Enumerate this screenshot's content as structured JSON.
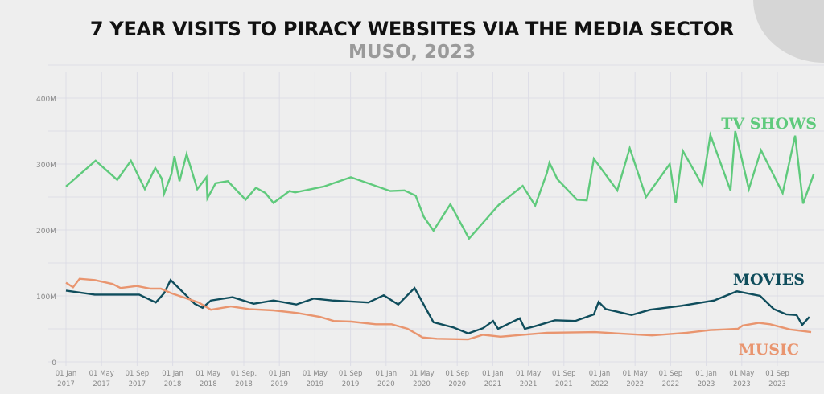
{
  "chart_data": {
    "type": "line",
    "title": "7 YEAR VISITS TO PIRACY WEBSITES VIA THE MEDIA SECTOR",
    "subtitle": "MUSO, 2023",
    "xlabel": "",
    "ylabel": "",
    "ylim": [
      0,
      400
    ],
    "yticks": [
      {
        "v": 0,
        "label": "0"
      },
      {
        "v": 100,
        "label": "100M"
      },
      {
        "v": 200,
        "label": "200M"
      },
      {
        "v": 300,
        "label": "300M"
      },
      {
        "v": 400,
        "label": "400M"
      }
    ],
    "xticks": [
      {
        "date": "2017-01-01",
        "l1": "01 Jan",
        "l2": "2017"
      },
      {
        "date": "2017-05-01",
        "l1": "01 May",
        "l2": "2017"
      },
      {
        "date": "2017-09-01",
        "l1": "01 Sep",
        "l2": "2017"
      },
      {
        "date": "2018-01-01",
        "l1": "01 Jan",
        "l2": "2018"
      },
      {
        "date": "2018-05-01",
        "l1": "01 May",
        "l2": "2018"
      },
      {
        "date": "2018-09-01",
        "l1": "01 Sep,",
        "l2": "2018"
      },
      {
        "date": "2019-01-01",
        "l1": "01 Jan",
        "l2": "2019"
      },
      {
        "date": "2019-05-01",
        "l1": "01 May",
        "l2": "2019"
      },
      {
        "date": "2019-09-01",
        "l1": "01 Sep",
        "l2": "2019"
      },
      {
        "date": "2020-01-01",
        "l1": "01 Jan",
        "l2": "2020"
      },
      {
        "date": "2020-05-01",
        "l1": "01 May",
        "l2": "2020"
      },
      {
        "date": "2020-09-01",
        "l1": "01 Sep",
        "l2": "2020"
      },
      {
        "date": "2021-01-01",
        "l1": "01 Jan",
        "l2": "2021"
      },
      {
        "date": "2021-05-01",
        "l1": "01 May",
        "l2": "2021"
      },
      {
        "date": "2021-09-01",
        "l1": "01 Sep",
        "l2": "2021"
      },
      {
        "date": "2022-01-01",
        "l1": "01 Jan",
        "l2": "2022"
      },
      {
        "date": "2022-05-01",
        "l1": "01 May",
        "l2": "2022"
      },
      {
        "date": "2022-09-01",
        "l1": "01 Sep",
        "l2": "2022"
      },
      {
        "date": "2023-01-01",
        "l1": "01 Jan",
        "l2": "2023"
      },
      {
        "date": "2023-05-01",
        "l1": "01 May",
        "l2": "2023"
      },
      {
        "date": "2023-09-01",
        "l1": "01 Sep",
        "l2": "2023"
      }
    ],
    "grid": true,
    "legend": "inline labels at right",
    "series": [
      {
        "name": "TV SHOWS",
        "color": "#5fca7c",
        "points": [
          [
            "2017-01-01",
            266
          ],
          [
            "2017-04-11",
            305
          ],
          [
            "2017-06-24",
            276
          ],
          [
            "2017-08-10",
            305
          ],
          [
            "2017-09-27",
            262
          ],
          [
            "2017-11-02",
            294
          ],
          [
            "2017-11-24",
            278
          ],
          [
            "2017-12-02",
            255
          ],
          [
            "2017-12-27",
            285
          ],
          [
            "2018-01-07",
            312
          ],
          [
            "2018-01-24",
            274
          ],
          [
            "2018-02-18",
            315
          ],
          [
            "2018-03-24",
            262
          ],
          [
            "2018-04-25",
            280
          ],
          [
            "2018-04-28",
            248
          ],
          [
            "2018-05-26",
            271
          ],
          [
            "2018-07-07",
            274
          ],
          [
            "2018-09-07",
            246
          ],
          [
            "2018-10-12",
            264
          ],
          [
            "2018-11-14",
            256
          ],
          [
            "2018-12-11",
            241
          ],
          [
            "2019-02-05",
            259
          ],
          [
            "2019-02-24",
            257
          ],
          [
            "2019-06-02",
            266
          ],
          [
            "2019-09-02",
            280
          ],
          [
            "2020-01-15",
            259
          ],
          [
            "2020-03-03",
            260
          ],
          [
            "2020-04-11",
            252
          ],
          [
            "2020-05-08",
            220
          ],
          [
            "2020-06-11",
            199
          ],
          [
            "2020-08-08",
            239
          ],
          [
            "2020-10-11",
            187
          ],
          [
            "2021-01-21",
            238
          ],
          [
            "2021-04-12",
            267
          ],
          [
            "2021-05-24",
            237
          ],
          [
            "2021-07-04",
            287
          ],
          [
            "2021-07-12",
            302
          ],
          [
            "2021-08-09",
            277
          ],
          [
            "2021-10-15",
            246
          ],
          [
            "2021-11-18",
            245
          ],
          [
            "2021-12-12",
            308
          ],
          [
            "2022-03-01",
            260
          ],
          [
            "2022-04-13",
            324
          ],
          [
            "2022-06-08",
            250
          ],
          [
            "2022-08-28",
            300
          ],
          [
            "2022-09-18",
            241
          ],
          [
            "2022-10-12",
            320
          ],
          [
            "2022-12-18",
            268
          ],
          [
            "2023-01-15",
            344
          ],
          [
            "2023-03-23",
            260
          ],
          [
            "2023-04-09",
            350
          ],
          [
            "2023-05-25",
            262
          ],
          [
            "2023-07-06",
            321
          ],
          [
            "2023-09-19",
            256
          ],
          [
            "2023-11-01",
            343
          ],
          [
            "2023-11-28",
            240
          ],
          [
            "2024-01-04",
            285
          ]
        ]
      },
      {
        "name": "MOVIES",
        "color": "#0f4d5c",
        "points": [
          [
            "2017-01-01",
            108
          ],
          [
            "2017-04-08",
            102
          ],
          [
            "2017-09-08",
            102
          ],
          [
            "2017-11-04",
            90
          ],
          [
            "2017-12-02",
            104
          ],
          [
            "2017-12-24",
            124
          ],
          [
            "2018-03-15",
            88
          ],
          [
            "2018-04-12",
            82
          ],
          [
            "2018-05-10",
            93
          ],
          [
            "2018-07-23",
            98
          ],
          [
            "2018-10-04",
            88
          ],
          [
            "2018-12-11",
            93
          ],
          [
            "2019-02-28",
            87
          ],
          [
            "2019-04-27",
            96
          ],
          [
            "2019-06-29",
            93
          ],
          [
            "2019-11-01",
            90
          ],
          [
            "2019-12-23",
            101
          ],
          [
            "2020-02-12",
            87
          ],
          [
            "2020-04-07",
            112
          ],
          [
            "2020-06-11",
            60
          ],
          [
            "2020-08-19",
            52
          ],
          [
            "2020-10-08",
            43
          ],
          [
            "2020-11-28",
            51
          ],
          [
            "2021-01-02",
            62
          ],
          [
            "2021-01-19",
            50
          ],
          [
            "2021-04-02",
            66
          ],
          [
            "2021-04-19",
            50
          ],
          [
            "2021-05-24",
            54
          ],
          [
            "2021-08-01",
            63
          ],
          [
            "2021-10-09",
            62
          ],
          [
            "2021-12-12",
            72
          ],
          [
            "2021-12-28",
            91
          ],
          [
            "2022-01-22",
            80
          ],
          [
            "2022-04-19",
            71
          ],
          [
            "2022-06-22",
            79
          ],
          [
            "2022-10-07",
            85
          ],
          [
            "2023-01-28",
            93
          ],
          [
            "2023-04-15",
            107
          ],
          [
            "2023-07-03",
            100
          ],
          [
            "2023-08-19",
            80
          ],
          [
            "2023-10-01",
            72
          ],
          [
            "2023-11-06",
            71
          ],
          [
            "2023-11-25",
            56
          ],
          [
            "2023-12-19",
            68
          ]
        ]
      },
      {
        "name": "MUSIC",
        "color": "#e9956f",
        "points": [
          [
            "2017-01-01",
            120
          ],
          [
            "2017-01-25",
            113
          ],
          [
            "2017-02-17",
            126
          ],
          [
            "2017-04-08",
            124
          ],
          [
            "2017-06-08",
            118
          ],
          [
            "2017-07-05",
            112
          ],
          [
            "2017-08-30",
            115
          ],
          [
            "2017-10-16",
            111
          ],
          [
            "2017-11-21",
            111
          ],
          [
            "2017-12-27",
            104
          ],
          [
            "2018-03-29",
            90
          ],
          [
            "2018-05-10",
            79
          ],
          [
            "2018-07-17",
            84
          ],
          [
            "2018-09-19",
            80
          ],
          [
            "2018-12-11",
            78
          ],
          [
            "2019-03-02",
            74
          ],
          [
            "2019-05-19",
            68
          ],
          [
            "2019-07-04",
            62
          ],
          [
            "2019-09-04",
            61
          ],
          [
            "2019-11-26",
            57
          ],
          [
            "2020-01-20",
            57
          ],
          [
            "2020-03-14",
            50
          ],
          [
            "2020-05-04",
            37
          ],
          [
            "2020-06-22",
            35
          ],
          [
            "2020-10-08",
            34
          ],
          [
            "2020-11-28",
            41
          ],
          [
            "2021-01-27",
            38
          ],
          [
            "2021-07-04",
            44
          ],
          [
            "2021-12-16",
            45
          ],
          [
            "2022-06-28",
            40
          ],
          [
            "2022-10-25",
            44
          ],
          [
            "2023-01-15",
            48
          ],
          [
            "2023-04-18",
            50
          ],
          [
            "2023-05-04",
            55
          ],
          [
            "2023-06-28",
            59
          ],
          [
            "2023-08-07",
            57
          ],
          [
            "2023-10-14",
            49
          ],
          [
            "2023-12-25",
            45
          ]
        ]
      }
    ]
  }
}
